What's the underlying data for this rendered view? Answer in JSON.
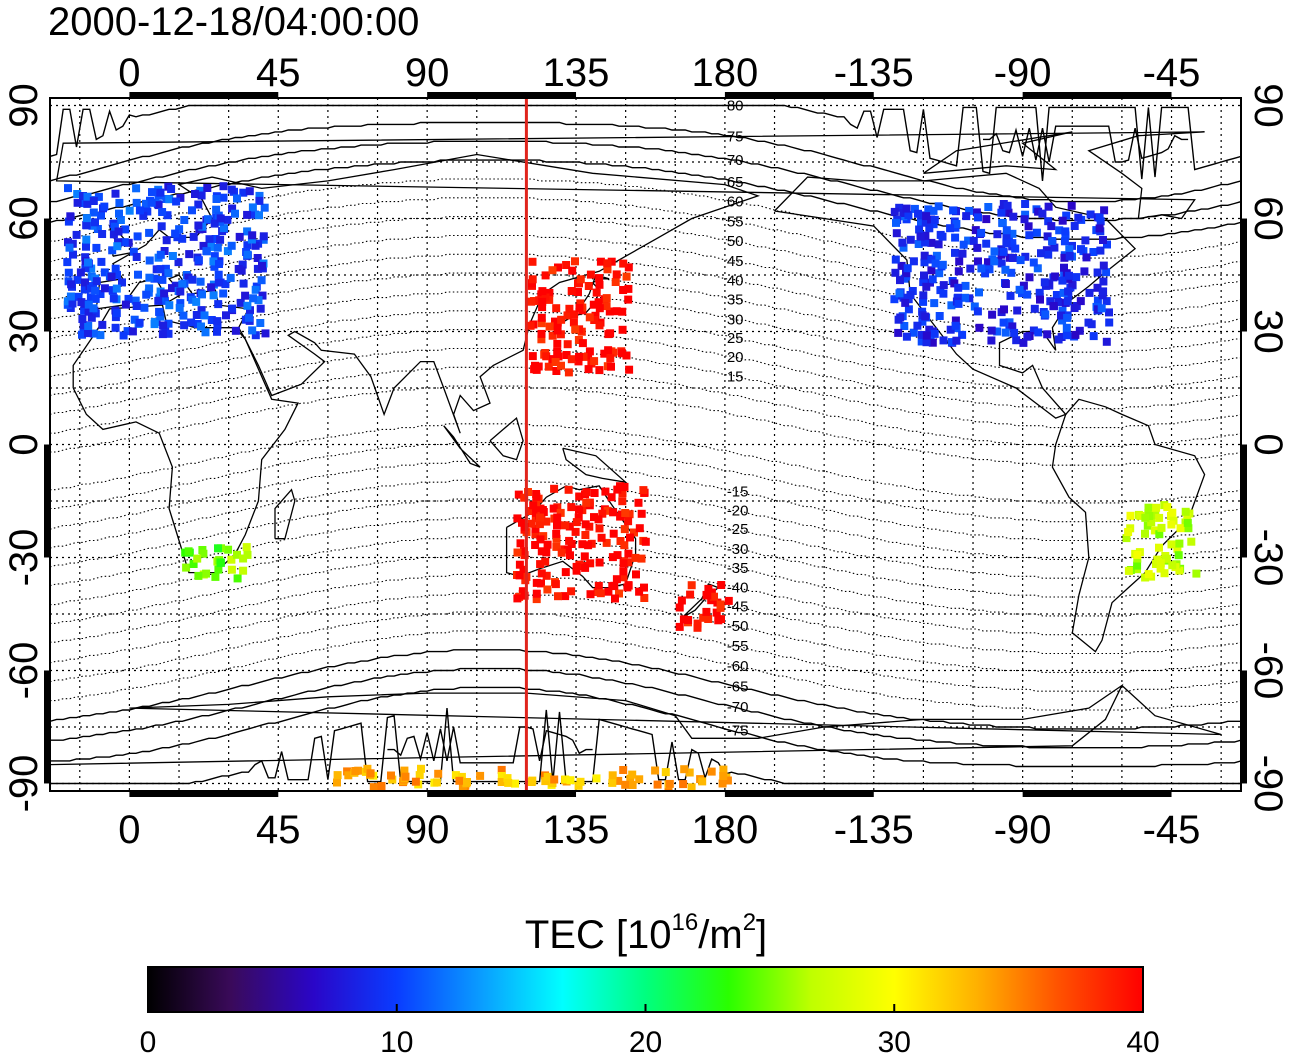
{
  "title": "2000-12-18/04:00:00",
  "axes": {
    "lon_ticks": [
      "0",
      "45",
      "90",
      "135",
      "180",
      "-135",
      "-90",
      "-45"
    ],
    "lat_ticks": [
      "90",
      "60",
      "30",
      "0",
      "-30",
      "-60",
      "-90"
    ]
  },
  "map": {
    "lon_range": [
      -24,
      336
    ],
    "lat_range": [
      -92,
      92
    ],
    "noon_meridian_lon": 120,
    "noon_meridian_color": "#e0241c",
    "magnetic_latitude_labels": [
      "80",
      "75",
      "70",
      "65",
      "60",
      "55",
      "50",
      "45",
      "40",
      "35",
      "30",
      "25",
      "20",
      "15",
      "-15",
      "-20",
      "-25",
      "-30",
      "-35",
      "-40",
      "-45",
      "-50",
      "-55",
      "-60",
      "-65",
      "-70",
      "-75"
    ]
  },
  "colorbar": {
    "title_main": "TEC  [10",
    "title_exp": "16",
    "title_mid": "/m",
    "title_exp2": "2",
    "title_end": "]",
    "ticks": [
      "0",
      "10",
      "20",
      "30",
      "40"
    ],
    "range": [
      0,
      40
    ],
    "palette": [
      "#000000",
      "#3a0a5a",
      "#2a06c8",
      "#0a3cff",
      "#0a9bff",
      "#00ffff",
      "#00ff7f",
      "#2aff00",
      "#bfff00",
      "#ffff00",
      "#ffb000",
      "#ff5000",
      "#ff0000"
    ]
  },
  "regions": [
    {
      "name": "europe",
      "lon": [
        -20,
        40
      ],
      "lat": [
        30,
        70
      ],
      "tec": 10
    },
    {
      "name": "east-asia",
      "lon": [
        120,
        150
      ],
      "lat": [
        20,
        50
      ],
      "tec": 40
    },
    {
      "name": "north-america",
      "lon": [
        -130,
        -65
      ],
      "lat": [
        28,
        65
      ],
      "tec": 9
    },
    {
      "name": "south-america",
      "lon": [
        -60,
        -38
      ],
      "lat": [
        -35,
        -15
      ],
      "tec": 27
    },
    {
      "name": "southern-africa",
      "lon": [
        15,
        35
      ],
      "lat": [
        -35,
        -25
      ],
      "tec": 25
    },
    {
      "name": "australia",
      "lon": [
        115,
        155
      ],
      "lat": [
        -40,
        -10
      ],
      "tec": 40
    },
    {
      "name": "new-zealand",
      "lon": [
        165,
        180
      ],
      "lat": [
        -48,
        -35
      ],
      "tec": 40
    },
    {
      "name": "antarctica-band",
      "lon": [
        60,
        180
      ],
      "lat": [
        -90,
        -85
      ],
      "tec": 33
    }
  ]
}
